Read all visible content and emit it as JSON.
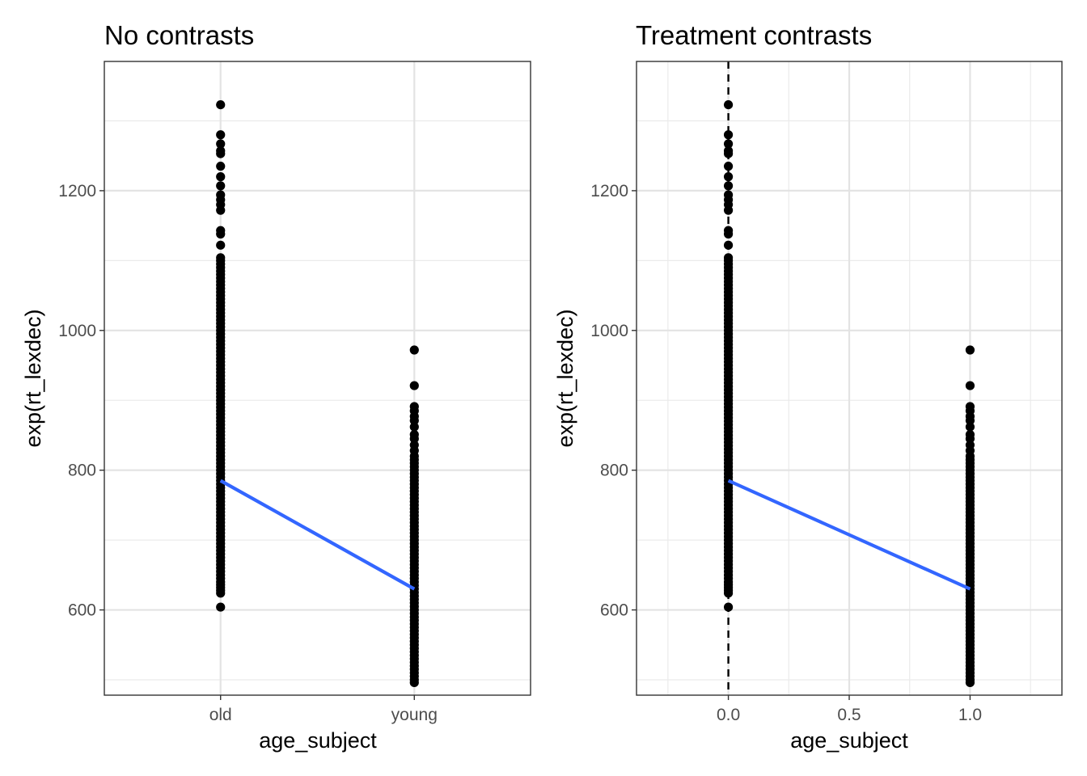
{
  "chart_data": [
    {
      "type": "scatter",
      "title": "No contrasts",
      "xlabel": "age_subject",
      "ylabel": "exp(rt_lexdec)",
      "x_scale": "categorical",
      "categories": [
        "old",
        "young"
      ],
      "ylim": [
        478,
        1385
      ],
      "yticks": [
        600,
        800,
        1000,
        1200
      ],
      "grid": true,
      "series": [
        {
          "category": "old",
          "points": [
            604,
            624,
            628,
            632,
            636,
            640,
            645,
            650,
            655,
            660,
            665,
            670,
            675,
            680,
            685,
            690,
            695,
            700,
            705,
            710,
            715,
            720,
            725,
            730,
            735,
            740,
            745,
            750,
            755,
            760,
            765,
            770,
            775,
            780,
            785,
            790,
            795,
            800,
            805,
            810,
            815,
            820,
            825,
            830,
            835,
            840,
            845,
            850,
            855,
            860,
            865,
            870,
            875,
            880,
            885,
            890,
            895,
            900,
            905,
            910,
            915,
            920,
            925,
            930,
            935,
            940,
            945,
            950,
            955,
            960,
            965,
            970,
            975,
            980,
            985,
            990,
            995,
            1000,
            1005,
            1010,
            1015,
            1020,
            1025,
            1030,
            1035,
            1040,
            1045,
            1050,
            1055,
            1060,
            1065,
            1070,
            1075,
            1080,
            1085,
            1090,
            1095,
            1100,
            1104,
            1122,
            1138,
            1143,
            1172,
            1180,
            1187,
            1194,
            1207,
            1220,
            1235,
            1253,
            1257,
            1267,
            1280,
            1323
          ]
        },
        {
          "category": "young",
          "points": [
            496,
            500,
            505,
            510,
            515,
            520,
            525,
            530,
            535,
            540,
            545,
            550,
            555,
            560,
            565,
            570,
            575,
            580,
            585,
            590,
            595,
            600,
            605,
            610,
            615,
            620,
            625,
            630,
            635,
            640,
            645,
            650,
            655,
            660,
            665,
            670,
            675,
            680,
            685,
            690,
            695,
            700,
            705,
            710,
            715,
            720,
            725,
            730,
            735,
            740,
            745,
            750,
            755,
            760,
            765,
            770,
            775,
            780,
            785,
            790,
            795,
            800,
            805,
            810,
            815,
            820,
            828,
            836,
            845,
            851,
            862,
            871,
            877,
            885,
            891,
            921,
            972
          ]
        }
      ],
      "fit_line": {
        "color": "#3366FF",
        "from": {
          "x": "old",
          "y": 785
        },
        "to": {
          "x": "young",
          "y": 630
        }
      },
      "point_color": "#000000"
    },
    {
      "type": "scatter",
      "title": "Treatment contrasts",
      "xlabel": "age_subject",
      "ylabel": "exp(rt_lexdec)",
      "x_scale": "numeric",
      "xlim": [
        -0.38,
        1.38
      ],
      "xticks": [
        0.0,
        0.5,
        1.0
      ],
      "xtick_labels": [
        "0.0",
        "0.5",
        "1.0"
      ],
      "ylim": [
        478,
        1385
      ],
      "yticks": [
        600,
        800,
        1000,
        1200
      ],
      "grid": true,
      "reference_line": {
        "x": 0,
        "style": "dashed",
        "color": "#000000"
      },
      "series": [
        {
          "x": 0,
          "points": [
            604,
            624,
            628,
            632,
            636,
            640,
            645,
            650,
            655,
            660,
            665,
            670,
            675,
            680,
            685,
            690,
            695,
            700,
            705,
            710,
            715,
            720,
            725,
            730,
            735,
            740,
            745,
            750,
            755,
            760,
            765,
            770,
            775,
            780,
            785,
            790,
            795,
            800,
            805,
            810,
            815,
            820,
            825,
            830,
            835,
            840,
            845,
            850,
            855,
            860,
            865,
            870,
            875,
            880,
            885,
            890,
            895,
            900,
            905,
            910,
            915,
            920,
            925,
            930,
            935,
            940,
            945,
            950,
            955,
            960,
            965,
            970,
            975,
            980,
            985,
            990,
            995,
            1000,
            1005,
            1010,
            1015,
            1020,
            1025,
            1030,
            1035,
            1040,
            1045,
            1050,
            1055,
            1060,
            1065,
            1070,
            1075,
            1080,
            1085,
            1090,
            1095,
            1100,
            1104,
            1122,
            1138,
            1143,
            1172,
            1180,
            1187,
            1194,
            1207,
            1220,
            1235,
            1253,
            1257,
            1267,
            1280,
            1323
          ]
        },
        {
          "x": 1,
          "points": [
            496,
            500,
            505,
            510,
            515,
            520,
            525,
            530,
            535,
            540,
            545,
            550,
            555,
            560,
            565,
            570,
            575,
            580,
            585,
            590,
            595,
            600,
            605,
            610,
            615,
            620,
            625,
            630,
            635,
            640,
            645,
            650,
            655,
            660,
            665,
            670,
            675,
            680,
            685,
            690,
            695,
            700,
            705,
            710,
            715,
            720,
            725,
            730,
            735,
            740,
            745,
            750,
            755,
            760,
            765,
            770,
            775,
            780,
            785,
            790,
            795,
            800,
            805,
            810,
            815,
            820,
            828,
            836,
            845,
            851,
            862,
            871,
            877,
            885,
            891,
            921,
            972
          ]
        }
      ],
      "fit_line": {
        "color": "#3366FF",
        "from": {
          "x": 0,
          "y": 785
        },
        "to": {
          "x": 1,
          "y": 630
        }
      },
      "point_color": "#000000"
    }
  ]
}
